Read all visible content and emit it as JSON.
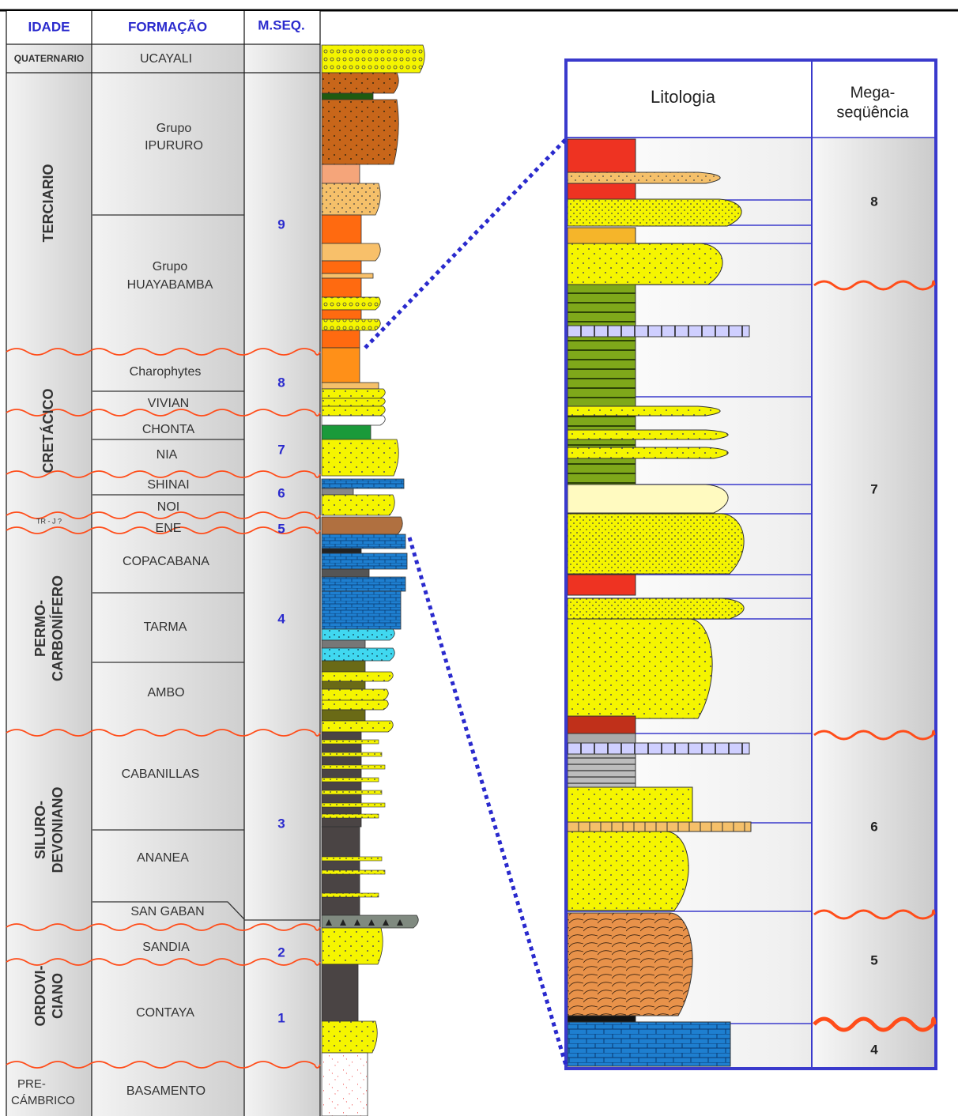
{
  "headers": {
    "idade": "IDADE",
    "formacao": "FORMAÇÃO",
    "mseq": "M.SEQ."
  },
  "ages": {
    "quaternario": "QUATERNARIO",
    "terciario": "TERCIARIO",
    "cretacico": "CRETÁCICO",
    "trj": "TR - J ?",
    "permo_1": "PERMO-",
    "permo_2": "CARBONÍFERO",
    "siluro_1": "SILURO-",
    "siluro_2": "DEVONIANO",
    "ordov_1": "ORDOVI-",
    "ordov_2": "CIANO",
    "pre_1": "PRE-",
    "pre_2": "CÁMBRICO"
  },
  "formations": {
    "ucayali": "UCAYALI",
    "ipururo_1": "Grupo",
    "ipururo_2": "IPURURO",
    "huaya_1": "Grupo",
    "huaya_2": "HUAYABAMBA",
    "charophytes": "Charophytes",
    "vivian": "VIVIAN",
    "chonta": "CHONTA",
    "nia": "NIA",
    "shinai": "SHINAI",
    "noi": "NOI",
    "ene": "ENE",
    "copacabana": "COPACABANA",
    "tarma": "TARMA",
    "ambo": "AMBO",
    "cabanillas": "CABANILLAS",
    "ananea": "ANANEA",
    "san_gaban": "SAN GABAN",
    "sandia": "SANDIA",
    "contaya": "CONTAYA",
    "basamento": "BASAMENTO"
  },
  "mseq": {
    "m9": "9",
    "m8": "8",
    "m7": "7",
    "m6": "6",
    "m5": "5",
    "m4": "4",
    "m3": "3",
    "m2": "2",
    "m1": "1"
  },
  "detail": {
    "litologia": "Litologia",
    "mega_1": "Mega-",
    "mega_2": "seqüência",
    "s8": "8",
    "s7": "7",
    "s6": "6",
    "s5": "5",
    "s4": "4"
  },
  "colors": {
    "header_text": "#2a2acd",
    "frame_blue": "#3a3acc",
    "unconformity": "#ff4d1a",
    "sandstone": "#f5f500",
    "limestone": "#1e7fd0",
    "shale": "#7fa81a",
    "dark_shale": "#4a4444",
    "red_bed": "#ee3322",
    "orange": "#ff6a10"
  }
}
